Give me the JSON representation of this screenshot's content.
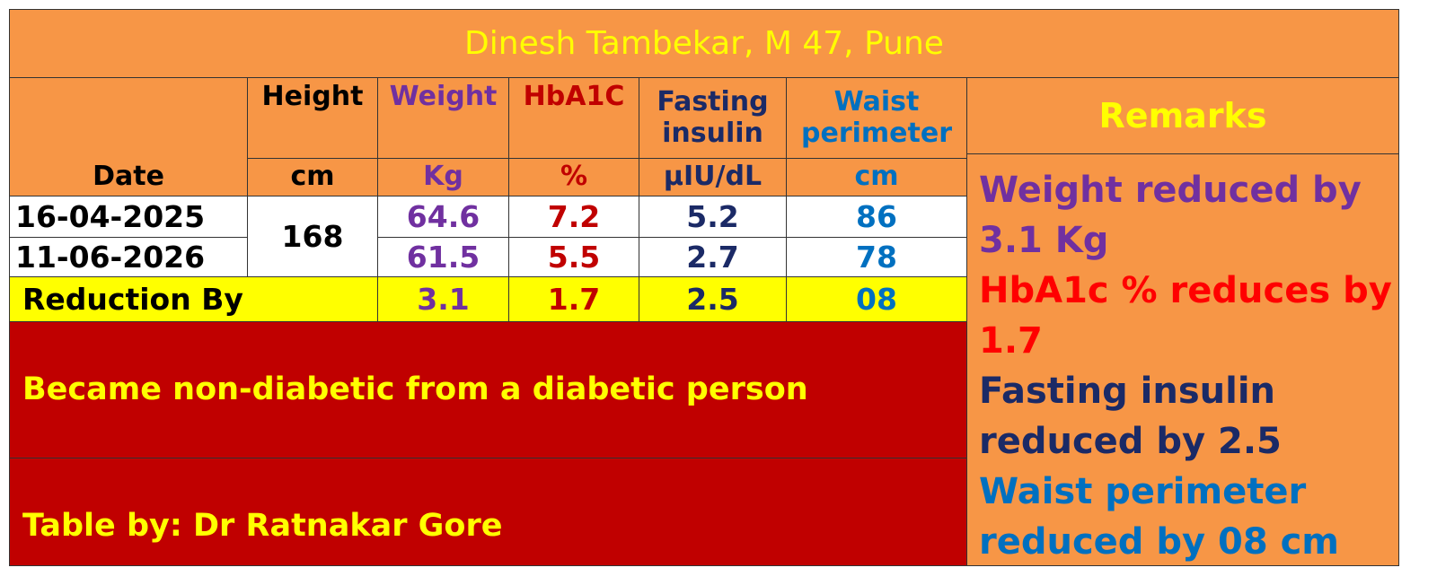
{
  "title": "Dinesh Tambekar, M 47, Pune",
  "table": {
    "columns": [
      {
        "unit": "Date"
      },
      {
        "name": "Height",
        "unit": "cm"
      },
      {
        "name": "Weight",
        "unit": "Kg"
      },
      {
        "name": "HbA1C",
        "unit": "%"
      },
      {
        "name": "Fasting insulin",
        "unit": "µIU/dL"
      },
      {
        "name": "Waist perimeter",
        "unit": "cm"
      }
    ],
    "height": "168",
    "rows": [
      {
        "date": "16-04-2025",
        "values": [
          "64.6",
          "7.2",
          "5.2",
          "86"
        ]
      },
      {
        "date": "11-06-2026",
        "values": [
          "61.5",
          "5.5",
          "2.7",
          "78"
        ]
      }
    ],
    "reduction": {
      "label": "Reduction By",
      "values": [
        "3.1",
        "1.7",
        "2.5",
        "08"
      ]
    }
  },
  "statement": "Became non-diabetic from a diabetic person",
  "credit": "Table by: Dr Ratnakar Gore",
  "remarks": {
    "title": "Remarks",
    "items": [
      "Weight reduced by 3.1 Kg",
      "HbA1c % reduces by 1.7",
      "Fasting insulin reduced by 2.5",
      "Waist perimeter reduced by 08 cm"
    ]
  }
}
